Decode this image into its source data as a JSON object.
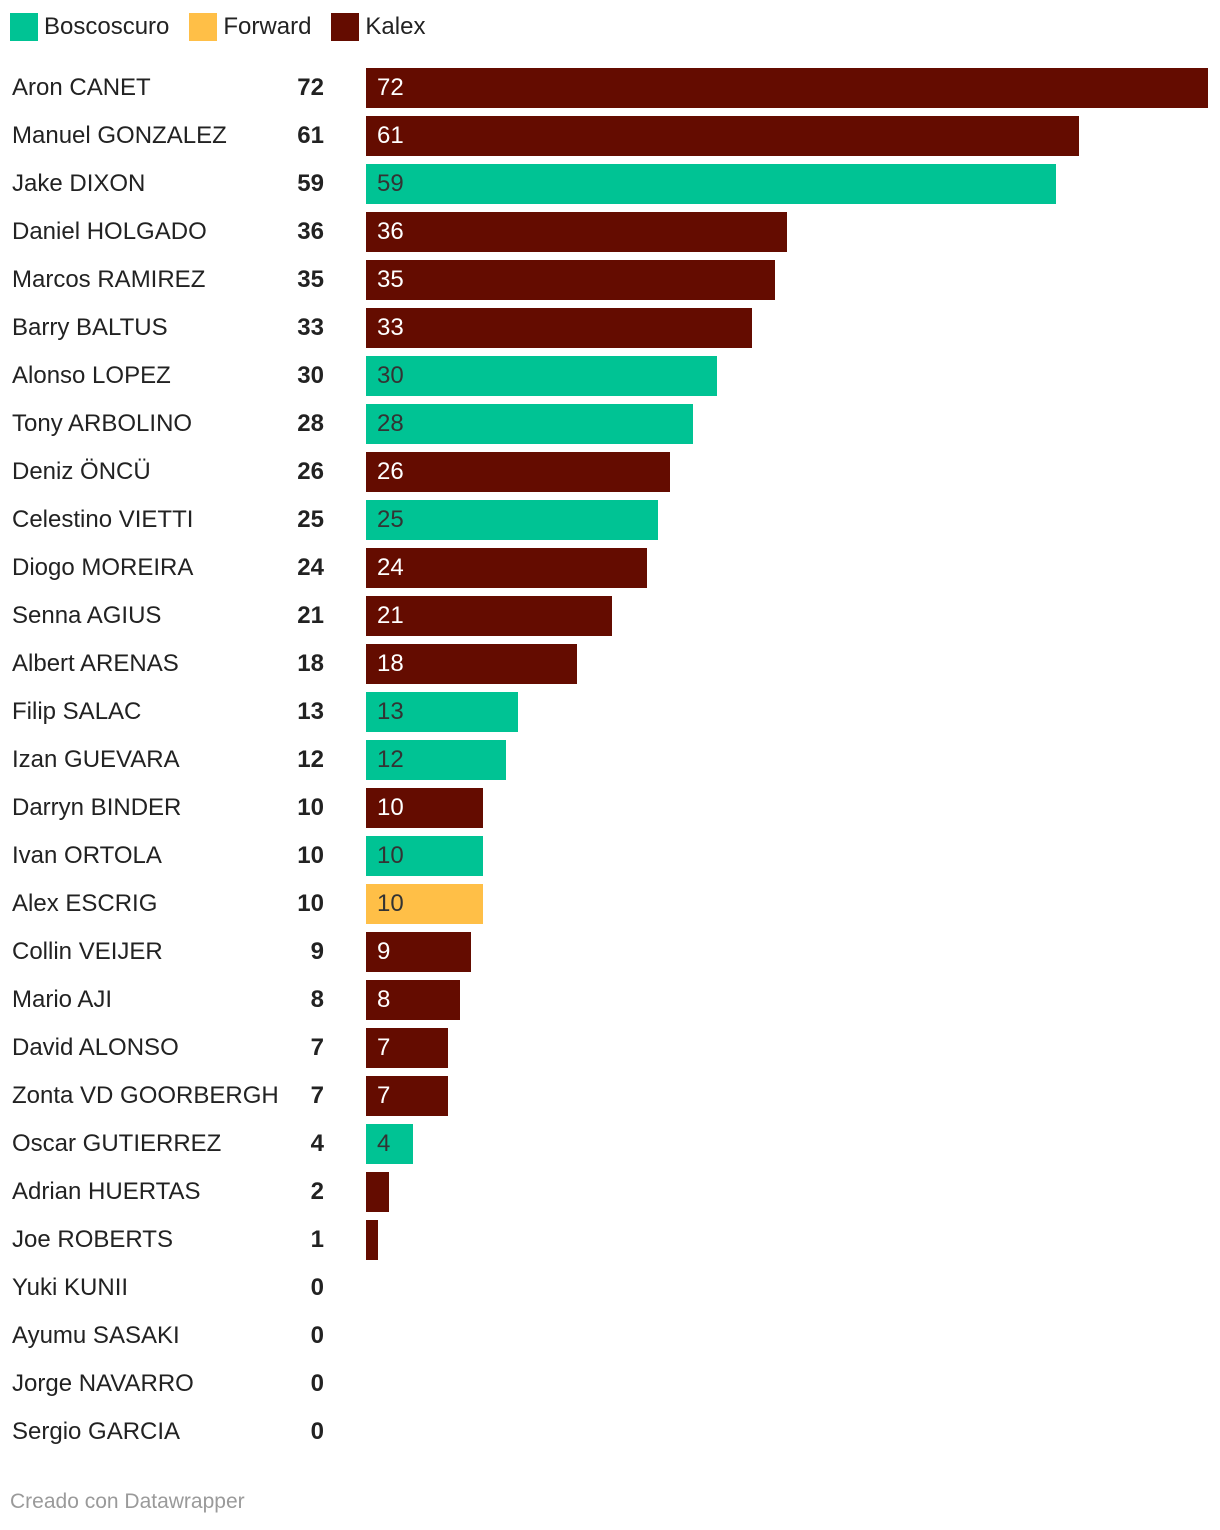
{
  "chart_data": {
    "type": "bar",
    "orientation": "horizontal",
    "title": "",
    "xlabel": "",
    "ylabel": "",
    "xlim": [
      0,
      72
    ],
    "grid": false,
    "legend_position": "top-left",
    "legend": [
      {
        "name": "Boscoscuro",
        "color": "#00c394"
      },
      {
        "name": "Forward",
        "color": "#ffbf47"
      },
      {
        "name": "Kalex",
        "color": "#640c00"
      }
    ],
    "categories": [
      "Aron CANET",
      "Manuel GONZALEZ",
      "Jake DIXON",
      "Daniel HOLGADO",
      "Marcos RAMIREZ",
      "Barry BALTUS",
      "Alonso LOPEZ",
      "Tony ARBOLINO",
      "Deniz ÖNCÜ",
      "Celestino VIETTI",
      "Diogo MOREIRA",
      "Senna AGIUS",
      "Albert ARENAS",
      "Filip SALAC",
      "Izan GUEVARA",
      "Darryn BINDER",
      "Ivan ORTOLA",
      "Alex ESCRIG",
      "Collin VEIJER",
      "Mario AJI",
      "David ALONSO",
      "Zonta VD GOORBERGH",
      "Oscar GUTIERREZ",
      "Adrian HUERTAS",
      "Joe ROBERTS",
      "Yuki KUNII",
      "Ayumu SASAKI",
      "Jorge NAVARRO",
      "Sergio GARCIA"
    ],
    "values": [
      72,
      61,
      59,
      36,
      35,
      33,
      30,
      28,
      26,
      25,
      24,
      21,
      18,
      13,
      12,
      10,
      10,
      10,
      9,
      8,
      7,
      7,
      4,
      2,
      1,
      0,
      0,
      0,
      0
    ],
    "groups": [
      "Kalex",
      "Kalex",
      "Boscoscuro",
      "Kalex",
      "Kalex",
      "Kalex",
      "Boscoscuro",
      "Boscoscuro",
      "Kalex",
      "Boscoscuro",
      "Kalex",
      "Kalex",
      "Kalex",
      "Boscoscuro",
      "Boscoscuro",
      "Kalex",
      "Boscoscuro",
      "Forward",
      "Kalex",
      "Kalex",
      "Kalex",
      "Kalex",
      "Boscoscuro",
      "Kalex",
      "Kalex",
      "Kalex",
      "Kalex",
      "Kalex",
      "Kalex"
    ],
    "label_colors": {
      "Boscoscuro": "#333333",
      "Forward": "#333333",
      "Kalex": "#ffffff"
    }
  },
  "footer": {
    "credit": "Creado con Datawrapper"
  }
}
